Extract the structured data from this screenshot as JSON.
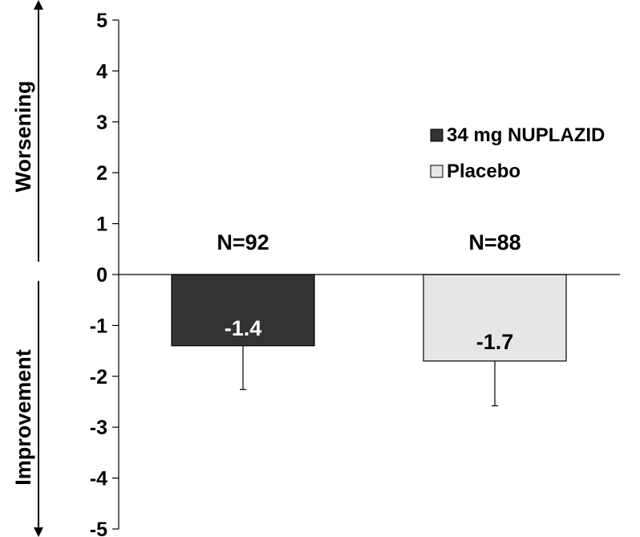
{
  "chart_data": {
    "type": "bar",
    "title": "",
    "xlabel": "",
    "ylabel": "",
    "ylim": [
      -5,
      5
    ],
    "yticks": [
      5,
      4,
      3,
      2,
      1,
      0,
      -1,
      -2,
      -3,
      -4,
      -5
    ],
    "grid": false,
    "legend_position": "right",
    "side_labels": {
      "up": "Worsening",
      "down": "Improvement"
    },
    "bars": [
      {
        "series": "34 mg NUPLAZID",
        "value": -1.4,
        "value_label": "-1.4",
        "n_label": "N=92",
        "error_low": -2.26,
        "color": "#333333",
        "label_color": "#ffffff"
      },
      {
        "series": "Placebo",
        "value": -1.7,
        "value_label": "-1.7",
        "n_label": "N=88",
        "error_low": -2.58,
        "color": "#e6e6e6",
        "label_color": "#000000"
      }
    ],
    "legend": [
      {
        "name": "34 mg NUPLAZID",
        "color": "#333333"
      },
      {
        "name": "Placebo",
        "color": "#e6e6e6"
      }
    ]
  }
}
